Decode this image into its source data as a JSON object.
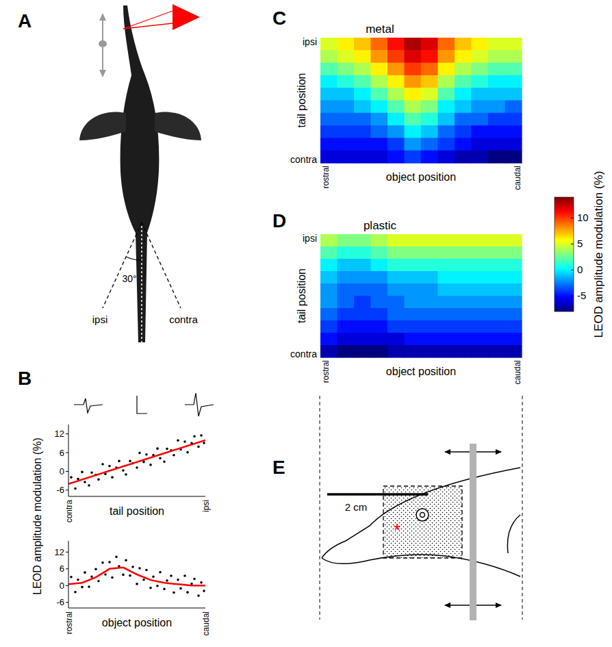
{
  "panel_letters": [
    "A",
    "B",
    "C",
    "D",
    "E"
  ],
  "panel_a": {
    "angle_label": "30°",
    "left_label": "ipsi",
    "right_label": "contra"
  },
  "panel_e": {
    "scale_label": "2 cm",
    "asterisk": "*"
  },
  "colorbar": {
    "label": "LEOD amplitude modulation (%)",
    "range": [
      -8,
      14
    ],
    "ticks": [
      -5,
      0,
      5,
      10
    ]
  },
  "chart_data": [
    {
      "type": "scatter",
      "xlabel": "tail position",
      "ylabel": "LEOD amplitude modulation (%)",
      "xlim": [
        0,
        1
      ],
      "ylim": [
        -8,
        15
      ],
      "xticks": [
        {
          "value": 0,
          "label": "contra"
        },
        {
          "value": 1,
          "label": "ipsi"
        }
      ],
      "yticks": [
        -6,
        0,
        6,
        12
      ],
      "series": [
        {
          "type": "scatter",
          "color": "#000000",
          "marker": "dot",
          "x": [
            0.02,
            0.05,
            0.07,
            0.1,
            0.12,
            0.15,
            0.17,
            0.2,
            0.22,
            0.25,
            0.27,
            0.3,
            0.32,
            0.35,
            0.37,
            0.4,
            0.42,
            0.45,
            0.47,
            0.5,
            0.52,
            0.55,
            0.57,
            0.6,
            0.62,
            0.65,
            0.67,
            0.7,
            0.72,
            0.75,
            0.77,
            0.8,
            0.82,
            0.85,
            0.87,
            0.9,
            0.92,
            0.95,
            0.97,
            0.99
          ],
          "values": [
            -1.9,
            -5.5,
            -2.4,
            -0.2,
            -3.4,
            -4.5,
            -0.4,
            -1.1,
            -2.6,
            2.3,
            -0.8,
            1.7,
            -1.9,
            1.2,
            3.3,
            0.3,
            -1.0,
            3.3,
            2.6,
            1.2,
            5.9,
            3.0,
            5.4,
            2.1,
            5.2,
            7.3,
            4.2,
            3.1,
            7.2,
            6.7,
            5.2,
            9.9,
            7.0,
            9.5,
            6.1,
            9.0,
            11.2,
            7.9,
            11.5,
            9.1
          ]
        },
        {
          "type": "line",
          "color": "#ff0000",
          "line_style": "solid",
          "x": [
            0,
            1
          ],
          "values": [
            -4,
            10
          ]
        }
      ]
    },
    {
      "type": "scatter",
      "xlabel": "object position",
      "xlim": [
        0,
        1
      ],
      "ylim": [
        -8,
        16
      ],
      "xticks": [
        {
          "value": 0,
          "label": "rostral"
        },
        {
          "value": 1,
          "label": "caudal"
        }
      ],
      "yticks": [
        -6,
        0,
        6,
        12
      ],
      "series": [
        {
          "type": "scatter",
          "color": "#000000",
          "marker": "dot",
          "x": [
            0.02,
            0.05,
            0.07,
            0.1,
            0.12,
            0.15,
            0.17,
            0.2,
            0.22,
            0.25,
            0.27,
            0.3,
            0.32,
            0.35,
            0.37,
            0.4,
            0.42,
            0.45,
            0.47,
            0.5,
            0.52,
            0.55,
            0.57,
            0.6,
            0.62,
            0.65,
            0.67,
            0.7,
            0.72,
            0.75,
            0.77,
            0.8,
            0.82,
            0.85,
            0.87,
            0.9,
            0.92,
            0.95,
            0.97,
            0.99
          ],
          "values": [
            3.1,
            -2.3,
            2.1,
            -0.5,
            4.7,
            -0.4,
            3.2,
            5.9,
            1.6,
            8.2,
            4.0,
            8.4,
            2.9,
            10.3,
            6.9,
            3.9,
            9.1,
            3.6,
            6.7,
            0.6,
            6.2,
            2.1,
            5.6,
            -0.8,
            3.2,
            -0.1,
            4.8,
            -1.2,
            1.8,
            3.5,
            -2.5,
            2.1,
            -1.0,
            3.5,
            -2.4,
            0.7,
            2.4,
            -3.6,
            1.1,
            -1.9
          ]
        },
        {
          "type": "line",
          "color": "#ff0000",
          "line_style": "solid",
          "x": [
            0,
            0.1,
            0.2,
            0.3,
            0.4,
            0.5,
            0.6,
            0.7,
            0.8,
            0.9,
            1
          ],
          "values": [
            0.5,
            1,
            3,
            6,
            6.5,
            4,
            2,
            1,
            0.5,
            0,
            0
          ]
        }
      ]
    },
    {
      "type": "heatmap",
      "title": "metal",
      "xlabel": "object position",
      "ylabel": "tail position",
      "xlim": [
        0,
        1
      ],
      "ylim": [
        0,
        1
      ],
      "xticks": [
        {
          "value": 0,
          "label": "rostral"
        },
        {
          "value": 1,
          "label": "caudal"
        }
      ],
      "yticks": [
        {
          "value": 0,
          "label": "contra"
        },
        {
          "value": 1,
          "label": "ipsi"
        }
      ],
      "cells": [
        [
          5,
          6,
          7,
          9,
          11,
          13,
          12,
          9,
          7,
          6,
          5,
          5
        ],
        [
          4,
          5,
          6,
          8,
          10,
          12,
          11,
          8,
          6,
          5,
          4,
          4
        ],
        [
          2,
          3,
          4,
          6,
          8,
          10,
          9,
          6,
          4,
          3,
          2,
          2
        ],
        [
          0,
          1,
          2,
          4,
          6,
          8,
          7,
          4,
          2,
          1,
          0,
          0
        ],
        [
          -1,
          -1,
          0,
          2,
          4,
          6,
          5,
          2,
          0,
          -1,
          -1,
          -1
        ],
        [
          -2,
          -2,
          -1,
          0,
          2,
          4,
          3,
          0,
          -1,
          -2,
          -2,
          -3
        ],
        [
          -3,
          -3,
          -3,
          -2,
          0,
          2,
          1,
          -1,
          -3,
          -3,
          -4,
          -4
        ],
        [
          -4,
          -4,
          -4,
          -3,
          -2,
          0,
          -1,
          -3,
          -4,
          -5,
          -5,
          -5
        ],
        [
          -5,
          -5,
          -5,
          -5,
          -4,
          -2,
          -3,
          -4,
          -5,
          -6,
          -6,
          -6
        ],
        [
          -6,
          -6,
          -6,
          -6,
          -5,
          -4,
          -5,
          -6,
          -7,
          -7,
          -8,
          -8
        ]
      ]
    },
    {
      "type": "heatmap",
      "title": "plastic",
      "xlabel": "object position",
      "ylabel": "tail position",
      "xlim": [
        0,
        1
      ],
      "ylim": [
        0,
        1
      ],
      "xticks": [
        {
          "value": 0,
          "label": "rostral"
        },
        {
          "value": 1,
          "label": "caudal"
        }
      ],
      "yticks": [
        {
          "value": 0,
          "label": "contra"
        },
        {
          "value": 1,
          "label": "ipsi"
        }
      ],
      "cells": [
        [
          4,
          3,
          3,
          4,
          5,
          5,
          5,
          5,
          5,
          5,
          5,
          5
        ],
        [
          2,
          1,
          1,
          2,
          3,
          3,
          3,
          3,
          3,
          3,
          3,
          3
        ],
        [
          0,
          -1,
          -1,
          0,
          1,
          1,
          1,
          1,
          1,
          1,
          1,
          1
        ],
        [
          -1,
          -2,
          -2,
          -2,
          -1,
          -1,
          -1,
          0,
          0,
          0,
          0,
          0
        ],
        [
          -2,
          -3,
          -3,
          -3,
          -2,
          -2,
          -2,
          -1,
          -1,
          -1,
          -1,
          -1
        ],
        [
          -2,
          -3,
          -4,
          -3,
          -3,
          -2,
          -2,
          -2,
          -2,
          -2,
          -2,
          -2
        ],
        [
          -3,
          -4,
          -4,
          -4,
          -3,
          -3,
          -3,
          -3,
          -3,
          -3,
          -3,
          -3
        ],
        [
          -4,
          -5,
          -5,
          -5,
          -4,
          -4,
          -4,
          -4,
          -4,
          -4,
          -4,
          -4
        ],
        [
          -5,
          -6,
          -6,
          -6,
          -6,
          -5,
          -5,
          -5,
          -5,
          -5,
          -5,
          -5
        ],
        [
          -7,
          -8,
          -8,
          -8,
          -7,
          -7,
          -7,
          -7,
          -7,
          -7,
          -7,
          -7
        ]
      ]
    }
  ]
}
